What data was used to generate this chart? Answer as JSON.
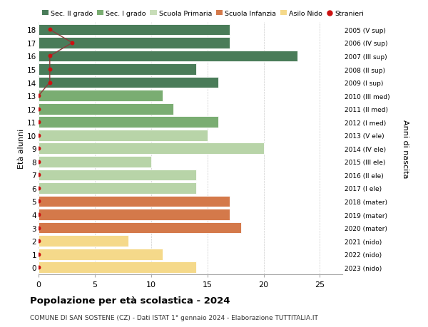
{
  "ages": [
    18,
    17,
    16,
    15,
    14,
    13,
    12,
    11,
    10,
    9,
    8,
    7,
    6,
    5,
    4,
    3,
    2,
    1,
    0
  ],
  "right_labels": [
    "2005 (V sup)",
    "2006 (IV sup)",
    "2007 (III sup)",
    "2008 (II sup)",
    "2009 (I sup)",
    "2010 (III med)",
    "2011 (II med)",
    "2012 (I med)",
    "2013 (V ele)",
    "2014 (IV ele)",
    "2015 (III ele)",
    "2016 (II ele)",
    "2017 (I ele)",
    "2018 (mater)",
    "2019 (mater)",
    "2020 (mater)",
    "2021 (nido)",
    "2022 (nido)",
    "2023 (nido)"
  ],
  "bar_values": [
    17,
    17,
    23,
    14,
    16,
    11,
    12,
    16,
    15,
    20,
    10,
    14,
    14,
    17,
    17,
    18,
    8,
    11,
    14
  ],
  "bar_colors": [
    "#4a7c59",
    "#4a7c59",
    "#4a7c59",
    "#4a7c59",
    "#4a7c59",
    "#7aad72",
    "#7aad72",
    "#7aad72",
    "#b8d4a8",
    "#b8d4a8",
    "#b8d4a8",
    "#b8d4a8",
    "#b8d4a8",
    "#d4794a",
    "#d4794a",
    "#d4794a",
    "#f5d98a",
    "#f5d98a",
    "#f5d98a"
  ],
  "stranieri_x": [
    1,
    3,
    1,
    1,
    1,
    0,
    0,
    0,
    0,
    0,
    0,
    0,
    0,
    0,
    0,
    0,
    0,
    0,
    0
  ],
  "legend_labels": [
    "Sec. II grado",
    "Sec. I grado",
    "Scuola Primaria",
    "Scuola Infanzia",
    "Asilo Nido",
    "Stranieri"
  ],
  "legend_colors": [
    "#4a7c59",
    "#7aad72",
    "#c8ddb8",
    "#d4794a",
    "#f5d98a",
    "#cc1111"
  ],
  "ylabel_left": "Età alunni",
  "ylabel_right": "Anni di nascita",
  "title": "Popolazione per età scolastica - 2024",
  "subtitle": "COMUNE DI SAN SOSTENE (CZ) - Dati ISTAT 1° gennaio 2024 - Elaborazione TUTTITALIA.IT",
  "xlim": [
    0,
    27
  ],
  "ylim": [
    -0.55,
    18.55
  ],
  "background_color": "#ffffff",
  "grid_color": "#cccccc",
  "stranieri_line_color": "#8b3a3a",
  "stranieri_dot_color": "#cc1111"
}
